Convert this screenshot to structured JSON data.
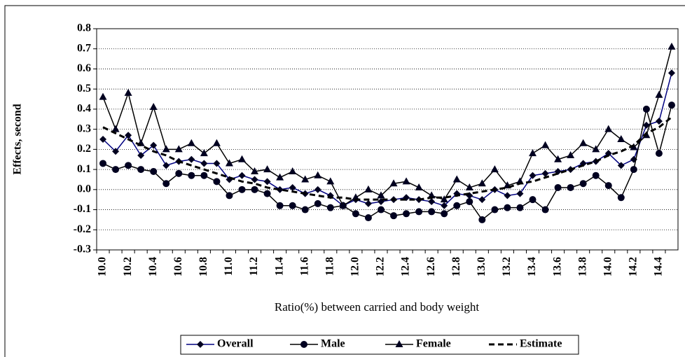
{
  "chart_data": {
    "type": "line",
    "x_label": "Ratio(%) between carried and body weight",
    "y_label": "Effects, second",
    "categories": [
      "10.0",
      null,
      "10.2",
      null,
      "10.4",
      null,
      "10.6",
      null,
      "10.8",
      null,
      "11.0",
      null,
      "11.2",
      null,
      "11.4",
      null,
      "11.6",
      null,
      "11.8",
      null,
      "12.0",
      null,
      "12.2",
      null,
      "12.4",
      null,
      "12.6",
      null,
      "12.8",
      null,
      "13.0",
      null,
      "13.2",
      null,
      "13.4",
      null,
      "13.6",
      null,
      "13.8",
      null,
      "14.0",
      null,
      "14.2",
      null,
      "14.4",
      null
    ],
    "series": [
      {
        "name": "Overall",
        "color": "#000080",
        "marker": "diamond",
        "dash": false,
        "values": [
          0.25,
          0.19,
          0.27,
          0.17,
          0.22,
          0.12,
          0.14,
          0.15,
          0.13,
          0.13,
          0.05,
          0.07,
          0.05,
          0.04,
          0.0,
          0.01,
          -0.02,
          0.0,
          -0.03,
          -0.08,
          -0.05,
          -0.07,
          -0.06,
          -0.05,
          -0.04,
          -0.05,
          -0.06,
          -0.08,
          -0.02,
          -0.03,
          -0.05,
          0.0,
          -0.03,
          -0.02,
          0.07,
          0.08,
          0.09,
          0.1,
          0.13,
          0.14,
          0.18,
          0.12,
          0.15,
          0.32,
          0.34,
          0.58
        ]
      },
      {
        "name": "Male",
        "color": "#000000",
        "marker": "circle",
        "dash": false,
        "values": [
          0.13,
          0.1,
          0.12,
          0.1,
          0.09,
          0.03,
          0.08,
          0.07,
          0.07,
          0.04,
          -0.03,
          0.0,
          0.0,
          -0.02,
          -0.08,
          -0.08,
          -0.1,
          -0.07,
          -0.09,
          -0.08,
          -0.12,
          -0.14,
          -0.1,
          -0.13,
          -0.12,
          -0.11,
          -0.11,
          -0.12,
          -0.08,
          -0.06,
          -0.15,
          -0.1,
          -0.09,
          -0.09,
          -0.05,
          -0.1,
          0.01,
          0.01,
          0.03,
          0.07,
          0.02,
          -0.04,
          0.1,
          0.4,
          0.18,
          0.42
        ]
      },
      {
        "name": "Female",
        "color": "#000000",
        "marker": "triangle",
        "dash": false,
        "values": [
          0.46,
          0.3,
          0.48,
          0.23,
          0.41,
          0.2,
          0.2,
          0.23,
          0.18,
          0.23,
          0.13,
          0.15,
          0.09,
          0.1,
          0.06,
          0.09,
          0.05,
          0.07,
          0.04,
          -0.08,
          -0.04,
          0.0,
          -0.03,
          0.03,
          0.04,
          0.01,
          -0.03,
          -0.05,
          0.05,
          0.01,
          0.03,
          0.1,
          0.02,
          0.04,
          0.18,
          0.22,
          0.15,
          0.17,
          0.23,
          0.2,
          0.3,
          0.25,
          0.21,
          0.27,
          0.47,
          0.71
        ]
      },
      {
        "name": "Estimate",
        "color": "#000000",
        "marker": null,
        "dash": true,
        "values": [
          0.31,
          0.28,
          0.25,
          0.22,
          0.19,
          0.17,
          0.14,
          0.12,
          0.1,
          0.08,
          0.06,
          0.04,
          0.03,
          0.01,
          0.0,
          -0.01,
          -0.02,
          -0.03,
          -0.04,
          -0.04,
          -0.05,
          -0.05,
          -0.05,
          -0.05,
          -0.05,
          -0.05,
          -0.04,
          -0.04,
          -0.03,
          -0.02,
          -0.01,
          0.0,
          0.01,
          0.03,
          0.04,
          0.06,
          0.08,
          0.1,
          0.12,
          0.14,
          0.17,
          0.19,
          0.22,
          0.28,
          0.31,
          0.36
        ]
      }
    ],
    "ylim": [
      -0.3,
      0.8
    ],
    "yticks": [
      -0.3,
      -0.2,
      -0.1,
      {
        "value": 0,
        "label": "0.0"
      },
      0.1,
      0.2,
      0.3,
      0.4,
      0.5,
      0.6,
      0.7,
      0.8
    ],
    "grid": true,
    "legend": "bottom"
  }
}
